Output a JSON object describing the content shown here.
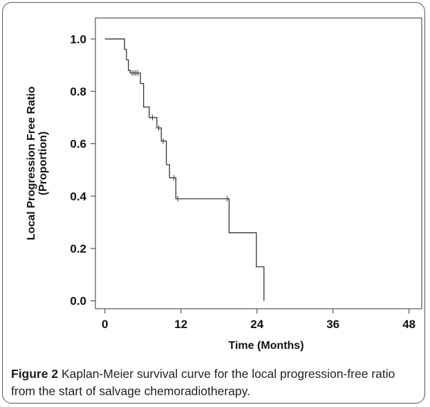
{
  "chart_data": {
    "type": "line",
    "title": "",
    "xlabel": "Time (Months)",
    "ylabel_lines": [
      "Local Progression Free Ratio",
      "(Proportion)"
    ],
    "xlim": [
      -1.5,
      50
    ],
    "ylim": [
      -0.03,
      1.08
    ],
    "xticks": [
      0,
      12,
      24,
      36,
      48
    ],
    "yticks": [
      0.0,
      0.2,
      0.4,
      0.6,
      0.8,
      1.0
    ],
    "ytick_labels": [
      "0.0",
      "0.2",
      "0.4",
      "0.6",
      "0.8",
      "1.0"
    ],
    "grid": false,
    "line_color": "#333333",
    "series": [
      {
        "steps": [
          {
            "x": 0.0,
            "y": 1.0
          },
          {
            "x": 3.1,
            "y": 0.96
          },
          {
            "x": 3.4,
            "y": 0.92
          },
          {
            "x": 3.7,
            "y": 0.88
          },
          {
            "x": 4.0,
            "y": 0.87
          },
          {
            "x": 5.6,
            "y": 0.83
          },
          {
            "x": 6.1,
            "y": 0.74
          },
          {
            "x": 7.0,
            "y": 0.7
          },
          {
            "x": 8.2,
            "y": 0.66
          },
          {
            "x": 8.9,
            "y": 0.61
          },
          {
            "x": 9.7,
            "y": 0.52
          },
          {
            "x": 10.2,
            "y": 0.47
          },
          {
            "x": 11.2,
            "y": 0.39
          },
          {
            "x": 19.6,
            "y": 0.26
          },
          {
            "x": 23.9,
            "y": 0.13
          },
          {
            "x": 25.1,
            "y": 0.0
          }
        ],
        "end_x": 25.1,
        "censored": [
          {
            "x": 4.3,
            "y": 0.87
          },
          {
            "x": 4.6,
            "y": 0.87
          },
          {
            "x": 4.9,
            "y": 0.87
          },
          {
            "x": 5.2,
            "y": 0.87
          },
          {
            "x": 7.5,
            "y": 0.7
          },
          {
            "x": 8.5,
            "y": 0.66
          },
          {
            "x": 9.2,
            "y": 0.61
          },
          {
            "x": 10.9,
            "y": 0.47
          },
          {
            "x": 11.5,
            "y": 0.39
          },
          {
            "x": 19.3,
            "y": 0.39
          }
        ]
      }
    ]
  },
  "caption": {
    "label": "Figure 2",
    "text": " Kaplan-Meier survival curve for the local progression-free ratio from the start of salvage chemoradiotherapy."
  }
}
